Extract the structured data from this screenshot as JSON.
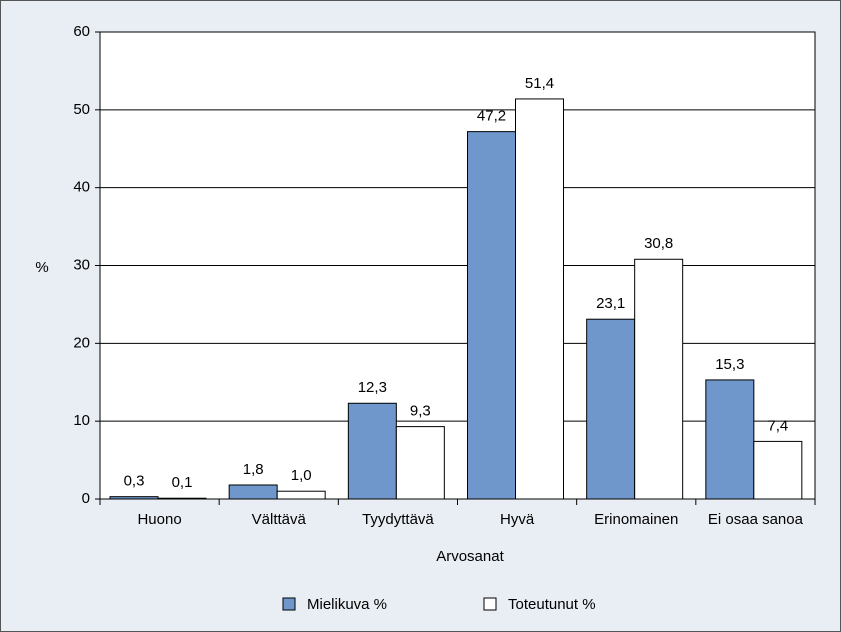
{
  "chart_data": {
    "type": "bar",
    "x_label": "Arvosanat",
    "y_label": "%",
    "categories": [
      "Huono",
      "Välttävä",
      "Tyydyttävä",
      "Hyvä",
      "Erinomainen",
      "Ei osaa sanoa"
    ],
    "series": [
      {
        "name": "Mielikuva %",
        "color": "#7097cb",
        "values": [
          0.3,
          1.8,
          12.3,
          47.2,
          23.1,
          15.3
        ],
        "value_labels": [
          "0,3",
          "1,8",
          "12,3",
          "47,2",
          "23,1",
          "15,3"
        ]
      },
      {
        "name": "Toteutunut %",
        "color": "#ffffff",
        "values": [
          0.1,
          1.0,
          9.3,
          51.4,
          30.8,
          7.4
        ],
        "value_labels": [
          "0,1",
          "1,0",
          "9,3",
          "51,4",
          "30,8",
          "7,4"
        ]
      }
    ],
    "ylim": [
      0,
      60
    ],
    "yticks": [
      0,
      10,
      20,
      30,
      40,
      50,
      60
    ],
    "grid": true
  }
}
